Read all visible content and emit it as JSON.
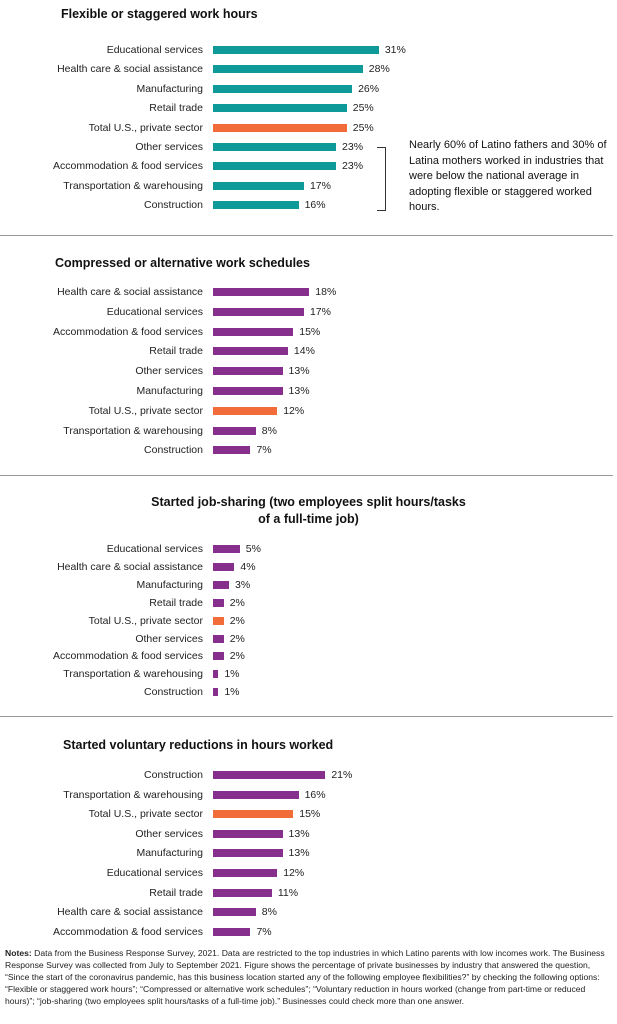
{
  "colors": {
    "total_bar": "#f26c3a",
    "panel_bars": [
      "#0f9a9a",
      "#862f8c",
      "#862f8c",
      "#862f8c"
    ]
  },
  "annotation": "Nearly 60% of Latino fathers and 30% of Latina mothers worked in industries that were below the national average in adopting flexible or staggered worked hours.",
  "notes": {
    "label": "Notes:",
    "text": "Data from the Business Response Survey, 2021. Data are restricted to the top industries in which Latino parents with low incomes work. The Business Response Survey was collected from July to September 2021. Figure shows the percentage of private businesses by industry that answered the question, “Since the start of the coronavirus pandemic, has this business location started any of the following employee flexibilities?” by checking the following options: “Flexible or staggered work hours”; “Compressed or alternative work schedules”; “Voluntary reduction in hours worked (change from part-time or reduced hours)”; “job-sharing (two employees split hours/tasks of a full-time job).” Businesses could check more than one answer."
  },
  "chart_data": [
    {
      "type": "bar",
      "title": "Flexible or staggered work hours",
      "categories": [
        "Educational services",
        "Health care & social assistance",
        "Manufacturing",
        "Retail trade",
        "Total U.S., private sector",
        "Other services",
        "Accommodation & food services",
        "Transportation & warehousing",
        "Construction"
      ],
      "values": [
        31,
        28,
        26,
        25,
        25,
        23,
        23,
        17,
        16
      ],
      "labels": [
        "31%",
        "28%",
        "26%",
        "25%",
        "25%",
        "23%",
        "23%",
        "17%",
        "16%"
      ],
      "highlight": "Total U.S., private sector"
    },
    {
      "type": "bar",
      "title": "Compressed or alternative work schedules",
      "categories": [
        "Health care & social assistance",
        "Educational services",
        "Accommodation & food services",
        "Retail trade",
        "Other services",
        "Manufacturing",
        "Total U.S., private sector",
        "Transportation & warehousing",
        "Construction"
      ],
      "values": [
        18,
        17,
        15,
        14,
        13,
        13,
        12,
        8,
        7
      ],
      "labels": [
        "18%",
        "17%",
        "15%",
        "14%",
        "13%",
        "13%",
        "12%",
        "8%",
        "7%"
      ],
      "highlight": "Total U.S., private sector"
    },
    {
      "type": "bar",
      "title": "Started job-sharing (two employees split hours/tasks of a full-time job)",
      "categories": [
        "Educational services",
        "Health care & social assistance",
        "Manufacturing",
        "Retail trade",
        "Total U.S., private sector",
        "Other services",
        "Accommodation & food services",
        "Transportation & warehousing",
        "Construction"
      ],
      "values": [
        5,
        4,
        3,
        2,
        2,
        2,
        2,
        1,
        1
      ],
      "labels": [
        "5%",
        "4%",
        "3%",
        "2%",
        "2%",
        "2%",
        "2%",
        "1%",
        "1%"
      ],
      "highlight": "Total U.S., private sector"
    },
    {
      "type": "bar",
      "title": "Started voluntary reductions in hours worked",
      "categories": [
        "Construction",
        "Transportation & warehousing",
        "Total U.S., private sector",
        "Other services",
        "Manufacturing",
        "Educational services",
        "Retail trade",
        "Health care & social assistance",
        "Accommodation & food services"
      ],
      "values": [
        21,
        16,
        15,
        13,
        13,
        12,
        11,
        8,
        7
      ],
      "labels": [
        "21%",
        "16%",
        "15%",
        "13%",
        "13%",
        "12%",
        "11%",
        "8%",
        "7%"
      ],
      "highlight": "Total U.S., private sector"
    }
  ]
}
